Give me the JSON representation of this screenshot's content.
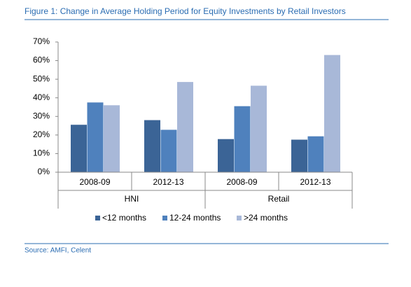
{
  "chart_data": {
    "type": "bar",
    "title": "Figure 1: Change in Average Holding Period for Equity Investments by Retail Investors",
    "source": "Source: AMFI, Celent",
    "categories": [
      "2008-09",
      "2012-13",
      "2008-09",
      "2012-13"
    ],
    "category_groups": [
      "HNI",
      "Retail"
    ],
    "series": [
      {
        "name": "<12 months",
        "color": "#3b6496",
        "values": [
          25.5,
          28,
          17.8,
          17.5
        ]
      },
      {
        "name": "12-24 months",
        "color": "#4f81bd",
        "values": [
          37.5,
          22.8,
          35.5,
          19.3
        ]
      },
      {
        "name": ">24 months",
        "color": "#a8b8d8",
        "values": [
          36,
          48.5,
          46.5,
          63
        ]
      }
    ],
    "ylim": [
      0,
      70
    ],
    "yticks": [
      {
        "value": 0,
        "label": "0%"
      },
      {
        "value": 10,
        "label": "10%"
      },
      {
        "value": 20,
        "label": "20%"
      },
      {
        "value": 30,
        "label": "30%"
      },
      {
        "value": 40,
        "label": "40%"
      },
      {
        "value": 50,
        "label": "50%"
      },
      {
        "value": 60,
        "label": "60%"
      },
      {
        "value": 70,
        "label": "70%"
      }
    ],
    "grid": false
  }
}
